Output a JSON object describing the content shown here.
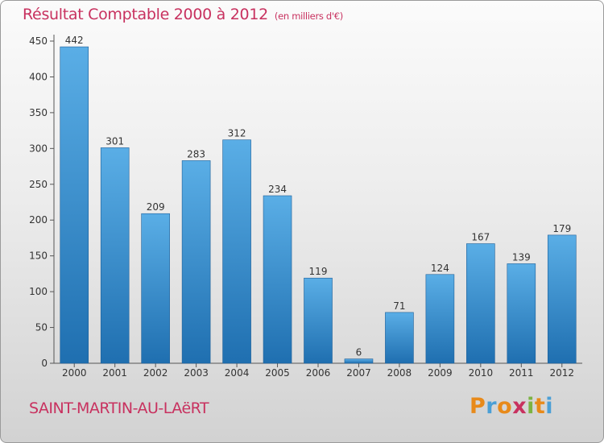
{
  "header": {
    "title": "Résultat Comptable 2000 à 2012",
    "subtitle": "(en milliers d'€)"
  },
  "footer": {
    "commune": "SAINT-MARTIN-AU-LAëRT",
    "logo_text": "Proxiti",
    "logo_colors": [
      "#e88a1a",
      "#4a9fd6",
      "#e88a1a",
      "#c8315f",
      "#7cb342",
      "#e88a1a",
      "#4a9fd6"
    ]
  },
  "colors": {
    "accent": "#c8315f",
    "bar_top": "#5aaee6",
    "bar_bottom": "#1f6fb0"
  },
  "chart_data": {
    "type": "bar",
    "categories": [
      "2000",
      "2001",
      "2002",
      "2003",
      "2004",
      "2005",
      "2006",
      "2007",
      "2008",
      "2009",
      "2010",
      "2011",
      "2012"
    ],
    "values": [
      442,
      301,
      209,
      283,
      312,
      234,
      119,
      6,
      71,
      124,
      167,
      139,
      179
    ],
    "title": "Résultat Comptable 2000 à 2012",
    "subtitle": "(en milliers d'€)",
    "ylim": [
      0,
      450
    ],
    "yticks": [
      0,
      50,
      100,
      150,
      200,
      250,
      300,
      350,
      400,
      450
    ],
    "grid": false,
    "legend": "none"
  }
}
